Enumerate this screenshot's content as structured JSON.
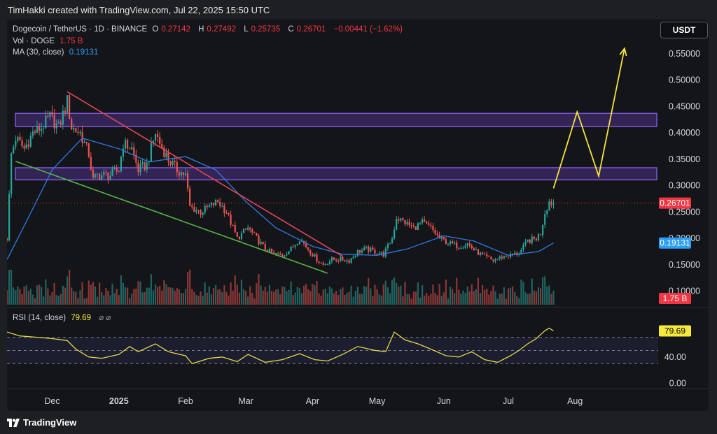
{
  "header": {
    "credit": "TimHakki created with TradingView.com, Jul 22, 2025 15:50 UTC"
  },
  "legend": {
    "pair": "Dogecoin / TetherUS · 1D · BINANCE",
    "open_label": "O",
    "open": "0.27142",
    "high_label": "H",
    "high": "0.27492",
    "low_label": "L",
    "low": "0.25735",
    "close_label": "C",
    "close": "0.26701",
    "change": "−0.00441 (−1.62%)",
    "vol_label": "Vol · DOGE",
    "vol": "1.75 B",
    "ma_label": "MA (30, close)",
    "ma": "0.19131",
    "rsi_label": "RSI (14, close)",
    "rsi": "79.69",
    "icons": "⌀ ⌀"
  },
  "currency_button": "USDT",
  "footer": {
    "brand": "TradingView"
  },
  "colors": {
    "up": "#26a69a",
    "down": "#ef5350",
    "ma": "#2c7be5",
    "rsi": "#e3d74a",
    "zone_fill": "#3d2a6b",
    "zone_border": "#8a60f0",
    "red_trend": "#e0455a",
    "green_trend": "#58b44a",
    "projection": "#f2e33a",
    "price_tag": "#f23645",
    "ma_tag": "#2c9ef5"
  },
  "chart_data": [
    {
      "type": "candlestick",
      "title": "Dogecoin / TetherUS · 1D · BINANCE",
      "yscale": "linear",
      "ylim": [
        0.085,
        0.575
      ],
      "yticks": [
        "0.55000",
        "0.50000",
        "0.45000",
        "0.40000",
        "0.35000",
        "0.30000",
        "0.25000",
        "0.20000",
        "0.15000",
        "0.10000"
      ],
      "ytick_values": [
        0.55,
        0.5,
        0.45,
        0.4,
        0.35,
        0.3,
        0.25,
        0.2,
        0.15,
        0.1
      ],
      "xticks": [
        "Dec",
        "2025",
        "Feb",
        "Mar",
        "Apr",
        "May",
        "Jun",
        "Jul",
        "Aug"
      ],
      "xtick_dates": [
        "2024-12-01",
        "2025-01-01",
        "2025-02-01",
        "2025-03-01",
        "2025-04-01",
        "2025-05-01",
        "2025-06-01",
        "2025-07-01",
        "2025-08-01"
      ],
      "xlim": [
        "2024-11-10",
        "2025-09-08"
      ],
      "price_path": [
        [
          "2024-11-10",
          0.2
        ],
        [
          "2024-11-12",
          0.36
        ],
        [
          "2024-11-14",
          0.39
        ],
        [
          "2024-11-18",
          0.37
        ],
        [
          "2024-11-22",
          0.4
        ],
        [
          "2024-11-26",
          0.41
        ],
        [
          "2024-11-30",
          0.43
        ],
        [
          "2024-12-04",
          0.41
        ],
        [
          "2024-12-08",
          0.46
        ],
        [
          "2024-12-10",
          0.41
        ],
        [
          "2024-12-14",
          0.4
        ],
        [
          "2024-12-18",
          0.36
        ],
        [
          "2024-12-20",
          0.31
        ],
        [
          "2024-12-22",
          0.32
        ],
        [
          "2024-12-28",
          0.32
        ],
        [
          "2025-01-01",
          0.33
        ],
        [
          "2025-01-03",
          0.38
        ],
        [
          "2025-01-07",
          0.37
        ],
        [
          "2025-01-10",
          0.33
        ],
        [
          "2025-01-14",
          0.34
        ],
        [
          "2025-01-18",
          0.4
        ],
        [
          "2025-01-20",
          0.38
        ],
        [
          "2025-01-24",
          0.35
        ],
        [
          "2025-01-28",
          0.33
        ],
        [
          "2025-02-01",
          0.32
        ],
        [
          "2025-02-03",
          0.26
        ],
        [
          "2025-02-08",
          0.25
        ],
        [
          "2025-02-12",
          0.26
        ],
        [
          "2025-02-16",
          0.27
        ],
        [
          "2025-02-20",
          0.25
        ],
        [
          "2025-02-25",
          0.2
        ],
        [
          "2025-03-02",
          0.22
        ],
        [
          "2025-03-06",
          0.2
        ],
        [
          "2025-03-10",
          0.18
        ],
        [
          "2025-03-14",
          0.17
        ],
        [
          "2025-03-18",
          0.168
        ],
        [
          "2025-03-22",
          0.18
        ],
        [
          "2025-03-26",
          0.2
        ],
        [
          "2025-03-30",
          0.18
        ],
        [
          "2025-04-03",
          0.16
        ],
        [
          "2025-04-06",
          0.15
        ],
        [
          "2025-04-10",
          0.16
        ],
        [
          "2025-04-14",
          0.16
        ],
        [
          "2025-04-18",
          0.158
        ],
        [
          "2025-04-22",
          0.175
        ],
        [
          "2025-04-26",
          0.18
        ],
        [
          "2025-04-30",
          0.175
        ],
        [
          "2025-05-04",
          0.17
        ],
        [
          "2025-05-08",
          0.2
        ],
        [
          "2025-05-10",
          0.24
        ],
        [
          "2025-05-14",
          0.23
        ],
        [
          "2025-05-18",
          0.22
        ],
        [
          "2025-05-22",
          0.23
        ],
        [
          "2025-05-26",
          0.22
        ],
        [
          "2025-05-30",
          0.2
        ],
        [
          "2025-06-04",
          0.19
        ],
        [
          "2025-06-08",
          0.185
        ],
        [
          "2025-06-12",
          0.19
        ],
        [
          "2025-06-16",
          0.175
        ],
        [
          "2025-06-20",
          0.165
        ],
        [
          "2025-06-24",
          0.158
        ],
        [
          "2025-06-28",
          0.165
        ],
        [
          "2025-07-02",
          0.168
        ],
        [
          "2025-07-06",
          0.172
        ],
        [
          "2025-07-10",
          0.195
        ],
        [
          "2025-07-14",
          0.2
        ],
        [
          "2025-07-16",
          0.21
        ],
        [
          "2025-07-18",
          0.25
        ],
        [
          "2025-07-20",
          0.27
        ],
        [
          "2025-07-22",
          0.267
        ]
      ],
      "last_close": 0.26701,
      "ma": {
        "label": "MA (30, close)",
        "last": 0.19131,
        "points": [
          [
            "2024-11-10",
            0.16
          ],
          [
            "2024-11-20",
            0.24
          ],
          [
            "2024-12-01",
            0.33
          ],
          [
            "2024-12-15",
            0.39
          ],
          [
            "2025-01-01",
            0.37
          ],
          [
            "2025-01-15",
            0.345
          ],
          [
            "2025-02-01",
            0.355
          ],
          [
            "2025-02-15",
            0.33
          ],
          [
            "2025-03-01",
            0.27
          ],
          [
            "2025-03-15",
            0.22
          ],
          [
            "2025-04-01",
            0.185
          ],
          [
            "2025-04-15",
            0.17
          ],
          [
            "2025-05-01",
            0.168
          ],
          [
            "2025-05-15",
            0.18
          ],
          [
            "2025-06-01",
            0.205
          ],
          [
            "2025-06-15",
            0.195
          ],
          [
            "2025-07-01",
            0.168
          ],
          [
            "2025-07-15",
            0.175
          ],
          [
            "2025-07-22",
            0.19131
          ]
        ]
      },
      "zones": [
        [
          0.412,
          0.437
        ],
        [
          0.311,
          0.334
        ]
      ],
      "trendlines": [
        {
          "color": "red",
          "from": [
            "2024-12-08",
            0.478
          ],
          "to": [
            "2025-04-15",
            0.166
          ]
        },
        {
          "color": "green",
          "from": [
            "2024-11-14",
            0.346
          ],
          "to": [
            "2025-04-08",
            0.134
          ]
        }
      ],
      "projection": [
        [
          "2025-07-22",
          0.295
        ],
        [
          "2025-08-02",
          0.44
        ],
        [
          "2025-08-12",
          0.318
        ],
        [
          "2025-08-24",
          0.56
        ]
      ],
      "volume": {
        "label": "Vol · DOGE",
        "last": "1.75 B"
      }
    },
    {
      "type": "line",
      "title": "RSI (14, close)",
      "ylim": [
        -8,
        110
      ],
      "yticks": [
        "40.00",
        "0.00"
      ],
      "ytick_values": [
        40,
        0
      ],
      "band": [
        30,
        70
      ],
      "last": 79.69,
      "points": [
        [
          "2024-11-10",
          78
        ],
        [
          "2024-11-16",
          72
        ],
        [
          "2024-11-24",
          70
        ],
        [
          "2024-12-01",
          68
        ],
        [
          "2024-12-08",
          65
        ],
        [
          "2024-12-12",
          52
        ],
        [
          "2024-12-18",
          40
        ],
        [
          "2024-12-24",
          38
        ],
        [
          "2025-01-01",
          44
        ],
        [
          "2025-01-06",
          56
        ],
        [
          "2025-01-10",
          48
        ],
        [
          "2025-01-18",
          60
        ],
        [
          "2025-01-24",
          48
        ],
        [
          "2025-02-01",
          42
        ],
        [
          "2025-02-04",
          30
        ],
        [
          "2025-02-12",
          38
        ],
        [
          "2025-02-18",
          40
        ],
        [
          "2025-02-25",
          33
        ],
        [
          "2025-03-02",
          44
        ],
        [
          "2025-03-10",
          32
        ],
        [
          "2025-03-18",
          36
        ],
        [
          "2025-03-26",
          45
        ],
        [
          "2025-04-02",
          36
        ],
        [
          "2025-04-08",
          34
        ],
        [
          "2025-04-15",
          44
        ],
        [
          "2025-04-22",
          56
        ],
        [
          "2025-04-30",
          50
        ],
        [
          "2025-05-05",
          48
        ],
        [
          "2025-05-09",
          78
        ],
        [
          "2025-05-14",
          66
        ],
        [
          "2025-05-20",
          60
        ],
        [
          "2025-05-26",
          52
        ],
        [
          "2025-06-02",
          42
        ],
        [
          "2025-06-08",
          40
        ],
        [
          "2025-06-14",
          48
        ],
        [
          "2025-06-20",
          36
        ],
        [
          "2025-06-26",
          32
        ],
        [
          "2025-07-02",
          42
        ],
        [
          "2025-07-06",
          50
        ],
        [
          "2025-07-10",
          60
        ],
        [
          "2025-07-14",
          68
        ],
        [
          "2025-07-18",
          80
        ],
        [
          "2025-07-20",
          84
        ],
        [
          "2025-07-22",
          79.69
        ]
      ]
    }
  ]
}
